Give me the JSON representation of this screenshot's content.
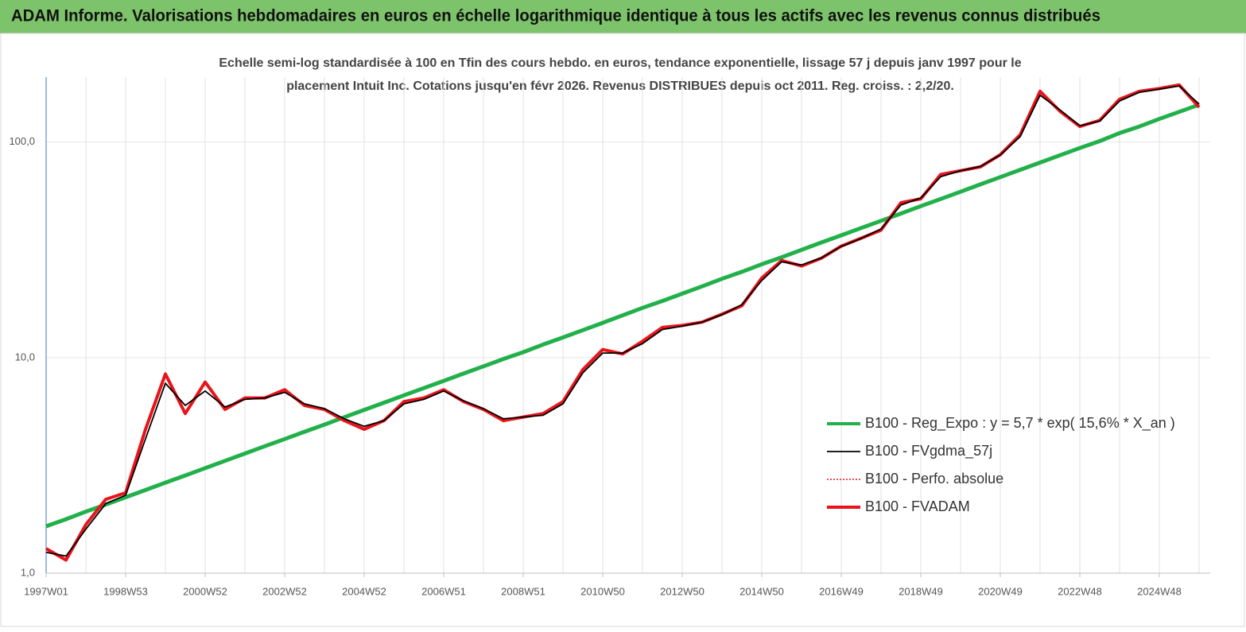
{
  "chart_data": {
    "type": "line",
    "title": "ADAM Informe. Valorisations hebdomadaires en euros en échelle logarithmique identique à tous les actifs avec les revenus connus distribués",
    "subtitle": [
      "Echelle semi-log standardisée à 100 en Tfin des cours hebdo. en euros, tendance exponentielle, lissage 57 j depuis janv 1997 pour le",
      "placement Intuit Inc. Cotations jusqu'en févr 2026. Revenus DISTRIBUES depuis oct 2011. Reg. croiss. : 2,2/20."
    ],
    "log_scale": true,
    "ylim": [
      1,
      200
    ],
    "yticks": [
      {
        "value": 1,
        "label": "1,0"
      },
      {
        "value": 10,
        "label": "10,0"
      },
      {
        "value": 100,
        "label": "100,0"
      }
    ],
    "grid": true,
    "legend": "right",
    "categories": [
      "1997W01",
      null,
      null,
      null,
      "1998W53",
      null,
      null,
      null,
      "2000W52",
      null,
      null,
      null,
      "2002W52",
      null,
      null,
      null,
      "2004W52",
      null,
      null,
      null,
      "2006W51",
      null,
      null,
      null,
      "2008W51",
      null,
      null,
      null,
      "2010W50",
      null,
      null,
      null,
      "2012W50",
      null,
      null,
      null,
      "2014W50",
      null,
      null,
      null,
      "2016W49",
      null,
      null,
      null,
      "2018W49",
      null,
      null,
      null,
      "2020W49",
      null,
      null,
      null,
      "2022W48",
      null,
      null,
      null,
      "2024W48",
      null,
      null
    ],
    "series": [
      {
        "name": "B100 - Reg_Expo : y = 5,7 * exp( 15,6% *  X_an )",
        "color": "#22b04b",
        "width": 5,
        "dash": "solid",
        "values": [
          1.65,
          1.78,
          1.93,
          2.08,
          2.25,
          2.43,
          2.63,
          2.84,
          3.07,
          3.32,
          3.59,
          3.88,
          4.19,
          4.53,
          4.89,
          5.29,
          5.72,
          6.18,
          6.68,
          7.22,
          7.8,
          8.43,
          9.11,
          9.85,
          10.6,
          11.5,
          12.4,
          13.4,
          14.5,
          15.7,
          17.0,
          18.3,
          19.8,
          21.4,
          23.2,
          25.0,
          27.1,
          29.2,
          31.6,
          34.2,
          36.9,
          39.9,
          43.1,
          46.6,
          50.4,
          54.4,
          58.8,
          63.6,
          68.7,
          74.3,
          80.3,
          86.8,
          93.8,
          101,
          110,
          118,
          128,
          138,
          149
        ]
      },
      {
        "name": "B100 - FVgdma_57j",
        "color": "#000000",
        "width": 1.8,
        "dash": "solid",
        "values": [
          1.25,
          1.2,
          1.6,
          2.1,
          2.3,
          4.2,
          7.6,
          6.0,
          7.0,
          5.9,
          6.4,
          6.5,
          6.9,
          6.1,
          5.8,
          5.2,
          4.8,
          5.1,
          6.1,
          6.4,
          7.0,
          6.3,
          5.8,
          5.2,
          5.3,
          5.4,
          6.1,
          8.5,
          10.5,
          10.5,
          11.6,
          13.5,
          14.0,
          14.6,
          15.8,
          17.6,
          22.8,
          27.8,
          26.9,
          29.0,
          32.8,
          35.7,
          39.5,
          51.0,
          55.0,
          69.0,
          73.5,
          77.0,
          87.0,
          106,
          165,
          141,
          119,
          125,
          155,
          170,
          176,
          182,
          150
        ]
      },
      {
        "name": "B100 - Perfo. absolue",
        "color": "#e8141b",
        "width": 1.5,
        "dash": "dotted",
        "values": [
          1.3,
          1.15,
          1.68,
          2.2,
          2.36,
          4.65,
          8.4,
          5.5,
          7.7,
          5.75,
          6.5,
          6.5,
          7.1,
          6.0,
          5.75,
          5.1,
          4.65,
          5.1,
          6.25,
          6.5,
          7.1,
          6.25,
          5.75,
          5.1,
          5.3,
          5.5,
          6.25,
          8.8,
          10.9,
          10.4,
          11.9,
          13.8,
          14.1,
          14.6,
          15.9,
          17.4,
          23.4,
          28.2,
          26.6,
          28.9,
          32.9,
          35.8,
          39,
          52.3,
          54.5,
          70.7,
          73.6,
          76.7,
          87.3,
          108,
          172,
          139,
          118,
          126,
          158,
          172,
          177,
          184,
          145
        ]
      },
      {
        "name": "B100 - FVADAM",
        "color": "#e8141b",
        "width": 4,
        "dash": "solid",
        "values": [
          1.3,
          1.15,
          1.68,
          2.2,
          2.36,
          4.65,
          8.4,
          5.5,
          7.7,
          5.75,
          6.5,
          6.5,
          7.1,
          6.0,
          5.75,
          5.1,
          4.65,
          5.1,
          6.25,
          6.5,
          7.1,
          6.25,
          5.75,
          5.1,
          5.3,
          5.5,
          6.25,
          8.8,
          10.9,
          10.4,
          11.9,
          13.8,
          14.1,
          14.6,
          15.9,
          17.4,
          23.4,
          28.2,
          26.6,
          28.9,
          32.9,
          35.8,
          39,
          52.3,
          54.5,
          70.7,
          73.6,
          76.7,
          87.3,
          108,
          172,
          139,
          118,
          126,
          158,
          172,
          177,
          184,
          145
        ]
      }
    ],
    "draw_order": [
      0,
      3,
      2,
      1
    ]
  }
}
